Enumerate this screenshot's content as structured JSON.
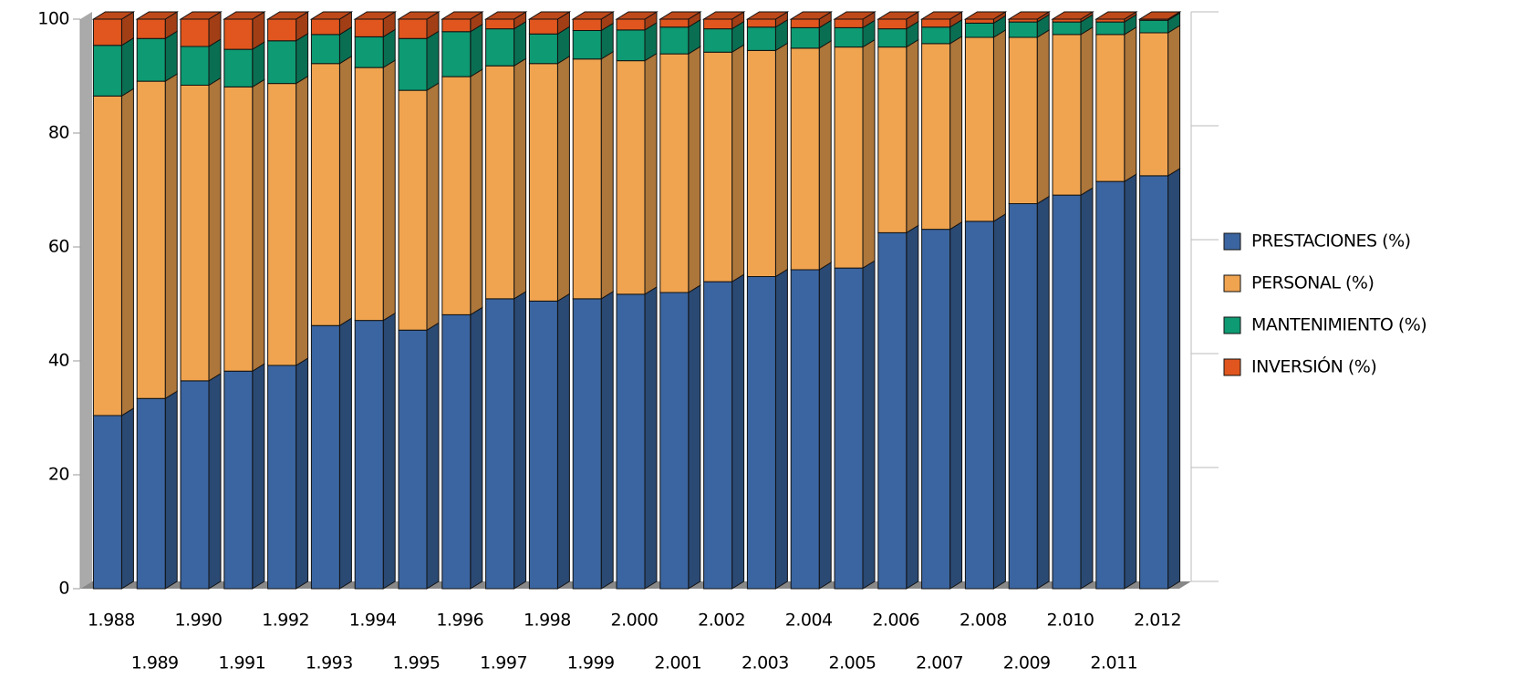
{
  "chart_data": {
    "type": "bar",
    "stacked": true,
    "categories": [
      "1.988",
      "1.989",
      "1.990",
      "1.991",
      "1.992",
      "1.993",
      "1.994",
      "1.995",
      "1.996",
      "1.997",
      "1.998",
      "1.999",
      "2.000",
      "2.001",
      "2.002",
      "2.003",
      "2.004",
      "2.005",
      "2.006",
      "2.007",
      "2.008",
      "2.009",
      "2.010",
      "2.011",
      "2.012"
    ],
    "series": [
      {
        "name": "PRESTACIONES (%)",
        "color": "#3b65a0",
        "values": [
          30.4,
          33.4,
          36.5,
          38.2,
          39.2,
          46.2,
          47.1,
          45.4,
          48.1,
          50.9,
          50.5,
          50.9,
          51.7,
          52.0,
          53.9,
          54.8,
          56.0,
          56.3,
          62.5,
          63.1,
          64.5,
          67.6,
          69.1,
          71.5,
          72.5
        ]
      },
      {
        "name": " PERSONAL (%)",
        "color": "#f0a450",
        "values": [
          56.1,
          55.7,
          51.9,
          49.9,
          49.5,
          46.0,
          44.4,
          42.1,
          41.8,
          40.9,
          41.7,
          42.1,
          41.0,
          41.9,
          40.3,
          39.7,
          38.9,
          38.8,
          32.6,
          32.6,
          32.3,
          29.2,
          28.2,
          25.8,
          25.1
        ]
      },
      {
        "name": "MANTENIMIENTO (%)",
        "color": "#0e9a72",
        "values": [
          8.9,
          7.5,
          6.8,
          6.6,
          7.5,
          5.1,
          5.4,
          9.1,
          7.9,
          6.5,
          5.2,
          5.0,
          5.4,
          4.7,
          4.1,
          4.1,
          3.6,
          3.4,
          3.2,
          2.9,
          2.5,
          2.7,
          2.2,
          2.2,
          2.2
        ]
      },
      {
        "name": "INVERSIÓN (%)",
        "color": "#e0561e",
        "values": [
          4.6,
          3.4,
          4.8,
          5.3,
          3.8,
          2.7,
          3.1,
          3.4,
          2.2,
          1.7,
          2.6,
          2.0,
          1.9,
          1.4,
          1.7,
          1.4,
          1.5,
          1.5,
          1.7,
          1.4,
          0.7,
          0.5,
          0.5,
          0.5,
          0.2
        ]
      }
    ],
    "ylim": [
      0,
      100
    ],
    "yticks": [
      0,
      20,
      40,
      60,
      80,
      100
    ],
    "legend": "right"
  }
}
